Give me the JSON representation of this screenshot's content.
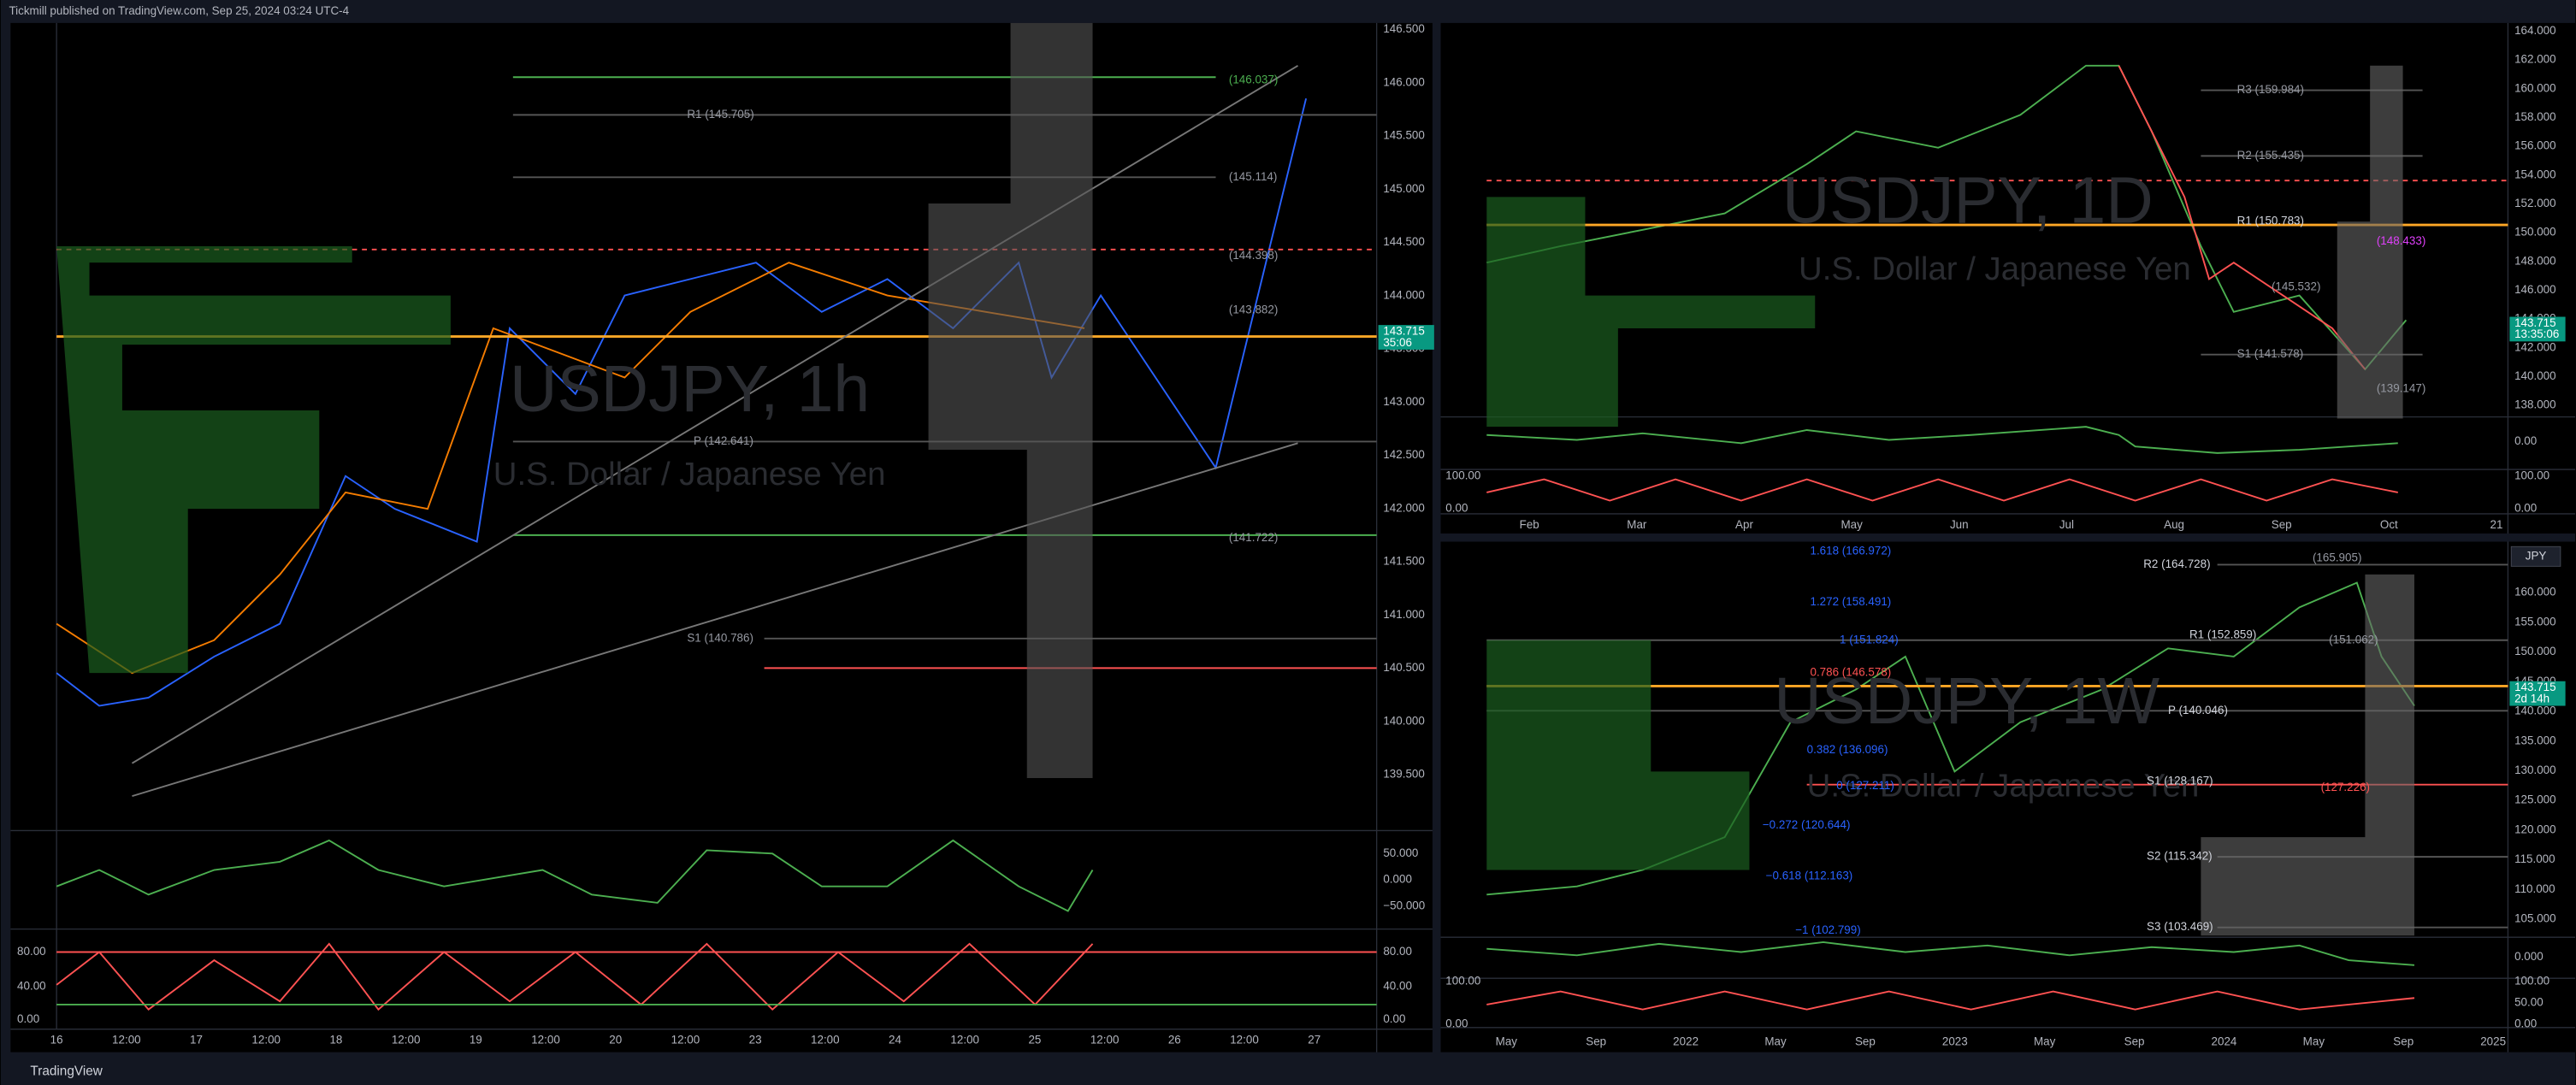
{
  "header": {
    "publisher": "Tickmill published on TradingView.com, Sep 25, 2024 03:24 UTC-4"
  },
  "footer": {
    "brand": "TradingView"
  },
  "panels": [
    {
      "symbol": "USDJPY, 1h",
      "description": "U.S. Dollar / Japanese Yen",
      "price_axis": [
        "146.500",
        "146.000",
        "145.500",
        "145.000",
        "144.500",
        "144.000",
        "143.500",
        "143.000",
        "142.500",
        "142.000",
        "141.500",
        "141.000",
        "140.500",
        "140.000",
        "139.500"
      ],
      "price_tag": {
        "price": "143.715",
        "countdown": "35:06"
      },
      "time_axis": [
        "16",
        "12:00",
        "17",
        "12:00",
        "18",
        "12:00",
        "19",
        "12:00",
        "20",
        "12:00",
        "23",
        "12:00",
        "24",
        "12:00",
        "25",
        "12:00",
        "26",
        "12:00",
        "27"
      ],
      "levels": [
        "(146.037)",
        "R1 (145.705)",
        "(145.114)",
        "(144.398)",
        "(143.882)",
        "P (142.641)",
        "(141.722)",
        "S1 (140.786)"
      ],
      "osc1_axis": [
        "50.000",
        "0.000",
        "−50.000"
      ],
      "osc2_axis": [
        "80.00",
        "40.00",
        "0.00"
      ],
      "osc2_left_axis": [
        "80.00",
        "40.00",
        "0.00"
      ]
    },
    {
      "symbol": "USDJPY, 1D",
      "description": "U.S. Dollar / Japanese Yen",
      "price_axis": [
        "164.000",
        "162.000",
        "160.000",
        "158.000",
        "156.000",
        "154.000",
        "152.000",
        "150.000",
        "148.000",
        "146.000",
        "144.000",
        "142.000",
        "140.000",
        "138.000"
      ],
      "price_tag": {
        "price": "143.715",
        "countdown": "13:35:06"
      },
      "time_axis": [
        "Feb",
        "Mar",
        "Apr",
        "May",
        "Jun",
        "Jul",
        "Aug",
        "Sep",
        "Oct",
        "21"
      ],
      "levels": [
        "R3 (159.984)",
        "R2 (155.435)",
        "R1 (150.783)",
        "(148.433)",
        "(145.532)",
        "S1 (141.578)",
        "(139.147)"
      ],
      "osc1_axis": [
        "0.00"
      ],
      "osc2_axis": [
        "100.00",
        "0.00"
      ],
      "osc2_left_axis": [
        "100.00",
        "0.00"
      ]
    },
    {
      "symbol": "USDJPY, 1W",
      "description": "U.S. Dollar / Japanese Yen",
      "currency": "JPY",
      "price_axis": [
        "160.000",
        "155.000",
        "150.000",
        "145.000",
        "140.000",
        "135.000",
        "130.000",
        "125.000",
        "120.000",
        "115.000",
        "110.000",
        "105.000"
      ],
      "price_tag": {
        "price": "143.715",
        "countdown": "2d 14h"
      },
      "time_axis": [
        "May",
        "Sep",
        "2022",
        "May",
        "Sep",
        "2023",
        "May",
        "Sep",
        "2024",
        "May",
        "Sep",
        "2025"
      ],
      "levels": [
        "1.618 (166.972)",
        "R2 (164.728)",
        "(165.905)",
        "1.272 (158.491)",
        "1 (151.824)",
        "R1 (152.859)",
        "(151.062)",
        "0.786 (146.578)",
        "P (140.046)",
        "0.382 (136.096)",
        "S1 (128.167)",
        "0 (127.211)",
        "(127.226)",
        "−0.272 (120.644)",
        "S2 (115.342)",
        "−0.618 (112.163)",
        "S3 (103.469)",
        "−1 (102.799)"
      ],
      "osc1_axis": [
        "0.000"
      ],
      "osc2_axis": [
        "100.00",
        "50.00",
        "0.00"
      ],
      "osc2_left_axis": [
        "100.00",
        "0.00"
      ]
    }
  ]
}
